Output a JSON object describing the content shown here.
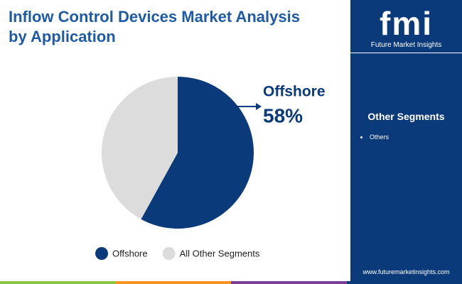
{
  "chart_data": {
    "type": "pie",
    "title": "Inflow Control Devices Market Analysis by Application",
    "categories": [
      "Offshore",
      "All Other Segments"
    ],
    "values": [
      58,
      42
    ],
    "value_labels": [
      "58%",
      null
    ],
    "colors": [
      "#0b3a7a",
      "#dcdcdc"
    ]
  },
  "brand": {
    "logo": "fmi",
    "name": "Future Market Insights",
    "website": "www.futuremarketinsights.com"
  },
  "sidebar": {
    "title": "Other Segments",
    "items": [
      "Others"
    ]
  }
}
